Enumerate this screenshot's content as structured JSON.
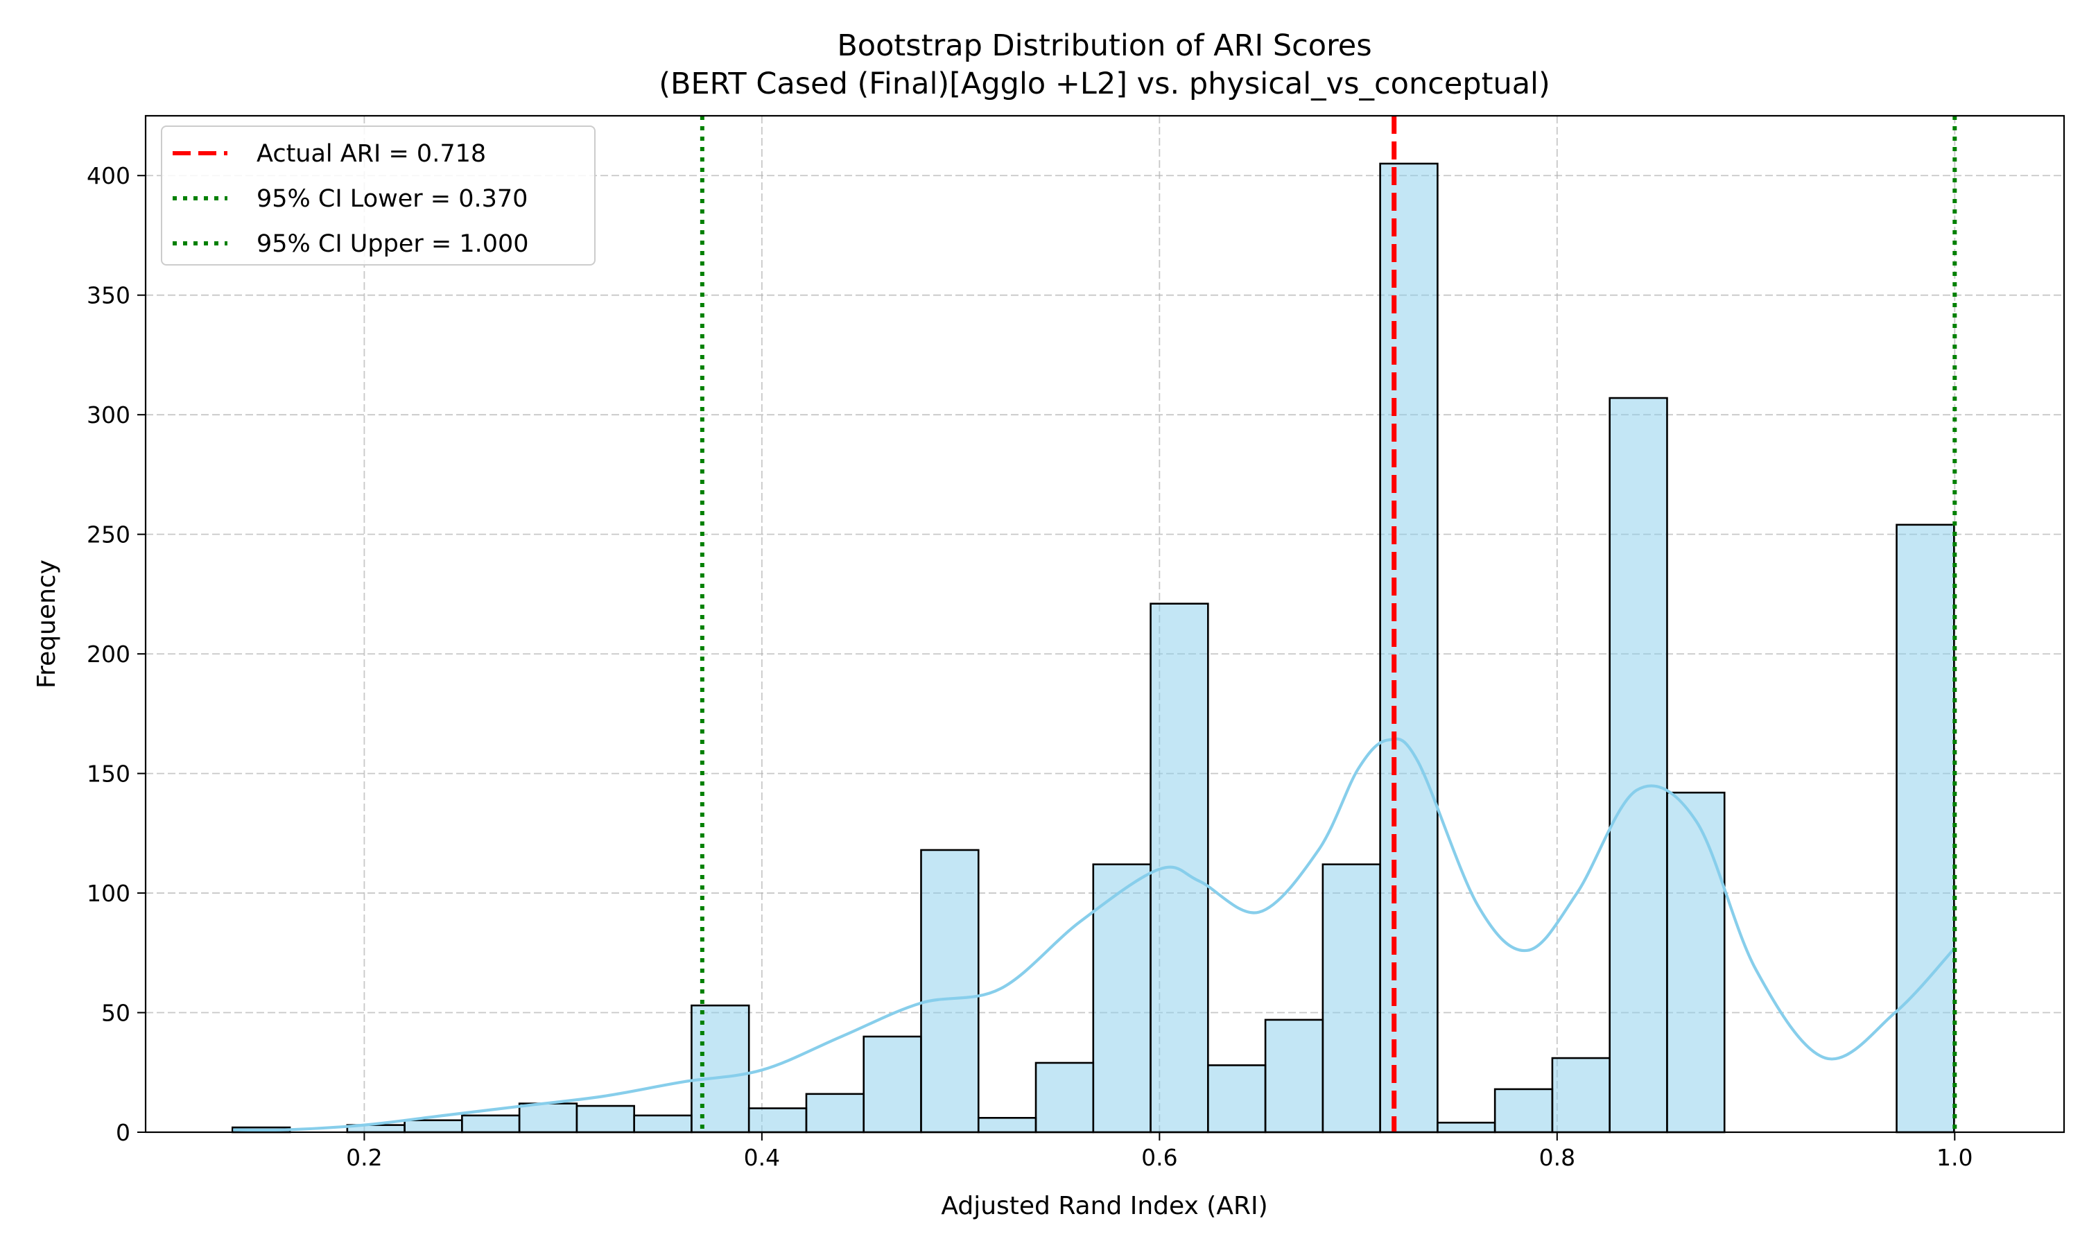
{
  "chart_data": {
    "type": "bar",
    "title": "Bootstrap Distribution of ARI Scores",
    "subtitle": "(BERT Cased (Final)[Agglo +L2] vs. physical_vs_conceptual)",
    "xlabel": "Adjusted Rand Index (ARI)",
    "ylabel": "Frequency",
    "xlim": [
      0.09,
      1.055
    ],
    "ylim": [
      0,
      425
    ],
    "xticks": [
      0.2,
      0.4,
      0.6,
      0.8,
      1.0
    ],
    "xtick_labels": [
      "0.2",
      "0.4",
      "0.6",
      "0.8",
      "1.0"
    ],
    "yticks": [
      0,
      50,
      100,
      150,
      200,
      250,
      300,
      350,
      400
    ],
    "ytick_labels": [
      "0",
      "50",
      "100",
      "150",
      "200",
      "250",
      "300",
      "350",
      "400"
    ],
    "grid": true,
    "legend_position": "top-left",
    "histogram": {
      "bin_start": 0.1337,
      "bin_width": 0.028865,
      "counts": [
        2,
        0,
        3,
        5,
        7,
        12,
        11,
        7,
        53,
        10,
        16,
        40,
        118,
        6,
        29,
        112,
        221,
        28,
        47,
        112,
        405,
        4,
        18,
        31,
        307,
        142,
        0,
        0,
        0,
        254
      ],
      "fill_color": "#87CEEB",
      "edge_color": "#000000"
    },
    "kde": {
      "x": [
        0.134,
        0.16,
        0.2,
        0.24,
        0.28,
        0.32,
        0.36,
        0.4,
        0.44,
        0.48,
        0.52,
        0.56,
        0.6,
        0.62,
        0.65,
        0.68,
        0.7,
        0.715,
        0.73,
        0.76,
        0.785,
        0.81,
        0.84,
        0.87,
        0.9,
        0.935,
        0.97,
        1.0
      ],
      "y": [
        1,
        1,
        3,
        7,
        11,
        15,
        21,
        26,
        40,
        54,
        60,
        88,
        110,
        105,
        92,
        118,
        152,
        164,
        155,
        95,
        76,
        100,
        143,
        130,
        68,
        31,
        50,
        77
      ],
      "color": "#87CEEB"
    },
    "reference_lines": [
      {
        "label": "Actual ARI = 0.718",
        "x": 0.718,
        "color": "#FF0000",
        "style": "dashed"
      },
      {
        "label": "95% CI Lower = 0.370",
        "x": 0.37,
        "color": "#008000",
        "style": "dotted"
      },
      {
        "label": "95% CI Upper = 1.000",
        "x": 1.0,
        "color": "#008000",
        "style": "dotted"
      }
    ]
  }
}
